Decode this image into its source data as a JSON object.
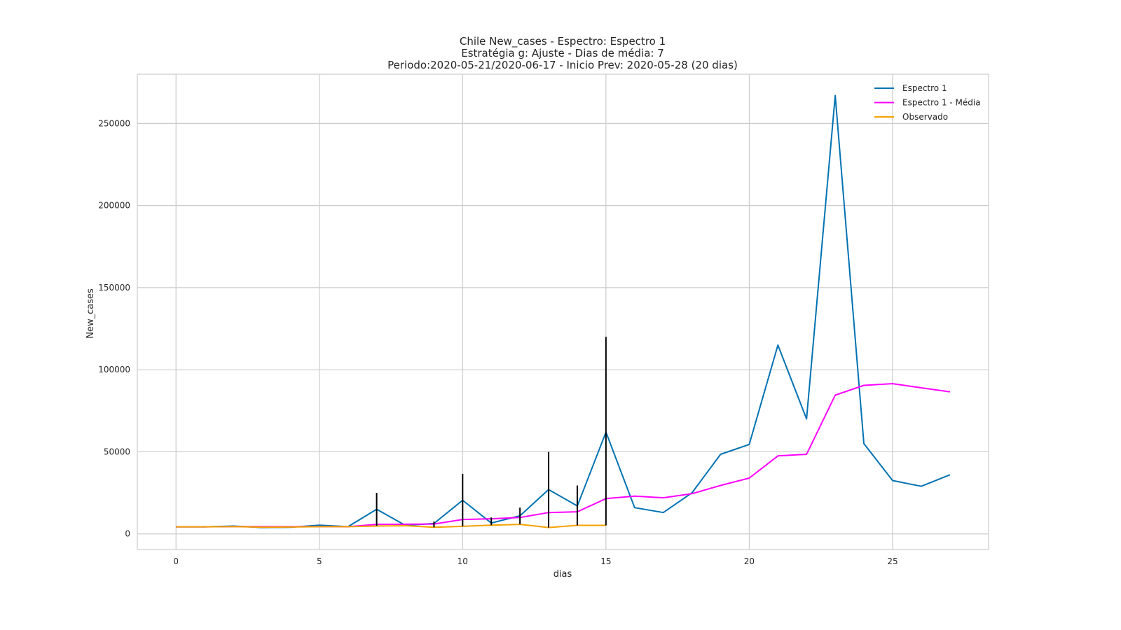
{
  "chart_data": {
    "type": "line",
    "title": [
      "Chile New_cases - Espectro: Espectro 1",
      "Estratégia g: Ajuste - Dias de média: 7",
      "Periodo:2020-05-21/2020-06-17 - Inicio Prev: 2020-05-28 (20 dias)"
    ],
    "xlabel": "dias",
    "ylabel": "New_cases",
    "xlim": [
      -1.35,
      28.35
    ],
    "ylim": [
      -9500,
      280000
    ],
    "xticks": [
      0,
      5,
      10,
      15,
      20,
      25
    ],
    "yticks": [
      0,
      50000,
      100000,
      150000,
      200000,
      250000
    ],
    "grid": true,
    "legend_position": "top-right",
    "series": [
      {
        "name": "Espectro 1",
        "color": "#0072b2",
        "x": [
          0,
          1,
          2,
          3,
          4,
          5,
          6,
          7,
          8,
          9,
          10,
          11,
          12,
          13,
          14,
          15,
          16,
          17,
          18,
          19,
          20,
          21,
          22,
          23,
          24,
          25,
          26,
          27
        ],
        "y": [
          4300,
          4300,
          4800,
          3900,
          4000,
          5300,
          4400,
          15000,
          5200,
          6300,
          20500,
          6600,
          11000,
          27000,
          17000,
          62000,
          16000,
          13000,
          25000,
          48500,
          54500,
          115000,
          70000,
          267000,
          55000,
          32500,
          29000,
          36000
        ]
      },
      {
        "name": "Espectro 1 - Média",
        "color": "#ff00ff",
        "x": [
          0,
          1,
          2,
          3,
          4,
          5,
          6,
          7,
          8,
          9,
          10,
          11,
          12,
          13,
          14,
          15,
          16,
          17,
          18,
          19,
          20,
          21,
          22,
          23,
          24,
          25,
          26,
          27
        ],
        "y": [
          4300,
          4300,
          4500,
          4400,
          4400,
          4500,
          4400,
          5800,
          5900,
          6000,
          8800,
          9200,
          10000,
          13000,
          13500,
          21500,
          23000,
          22000,
          24500,
          29500,
          34000,
          47500,
          48500,
          84500,
          90500,
          91500,
          89000,
          86500
        ]
      },
      {
        "name": "Observado",
        "color": "#f5a200",
        "x": [
          0,
          1,
          2,
          3,
          4,
          5,
          6,
          7,
          8,
          9,
          10,
          11,
          12,
          13,
          14,
          15
        ],
        "y": [
          4300,
          4300,
          4500,
          4100,
          4200,
          4400,
          4400,
          4800,
          5000,
          4000,
          4600,
          5300,
          5800,
          3900,
          5200,
          5200
        ]
      }
    ],
    "error_bars": {
      "color": "#000000",
      "items": [
        {
          "x": 7,
          "low": 5000,
          "high": 25000
        },
        {
          "x": 9,
          "low": 4000,
          "high": 7500
        },
        {
          "x": 10,
          "low": 4600,
          "high": 36500
        },
        {
          "x": 11,
          "low": 5300,
          "high": 10000
        },
        {
          "x": 12,
          "low": 5800,
          "high": 16000
        },
        {
          "x": 13,
          "low": 3900,
          "high": 50000
        },
        {
          "x": 14,
          "low": 5200,
          "high": 29500
        },
        {
          "x": 15,
          "low": 5200,
          "high": 120000
        }
      ]
    }
  }
}
